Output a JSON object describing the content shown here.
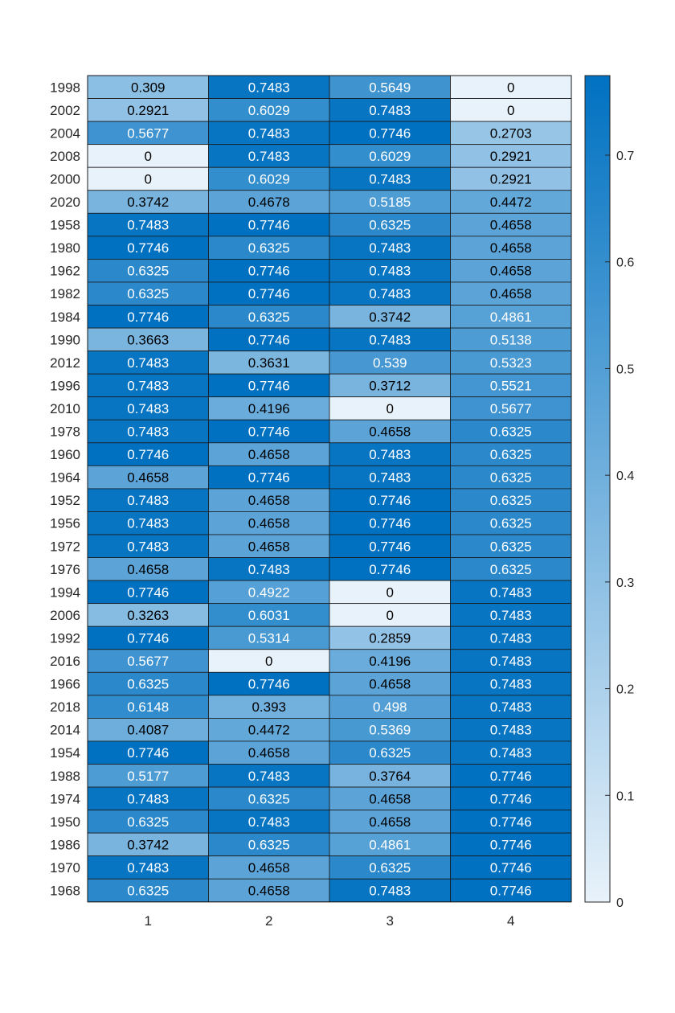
{
  "chart_data": {
    "type": "heatmap",
    "title": "",
    "xlabel": "",
    "ylabel": "",
    "x_categories": [
      "1",
      "2",
      "3",
      "4"
    ],
    "y_categories": [
      "1998",
      "2002",
      "2004",
      "2008",
      "2000",
      "2020",
      "1958",
      "1980",
      "1962",
      "1982",
      "1984",
      "1990",
      "2012",
      "1996",
      "2010",
      "1978",
      "1960",
      "1964",
      "1952",
      "1956",
      "1972",
      "1976",
      "1994",
      "2006",
      "1992",
      "2016",
      "1966",
      "2018",
      "2014",
      "1954",
      "1988",
      "1974",
      "1950",
      "1986",
      "1970",
      "1968"
    ],
    "values": [
      [
        "0.309",
        "0.7483",
        "0.5649",
        "0"
      ],
      [
        "0.2921",
        "0.6029",
        "0.7483",
        "0"
      ],
      [
        "0.5677",
        "0.7483",
        "0.7746",
        "0.2703"
      ],
      [
        "0",
        "0.7483",
        "0.6029",
        "0.2921"
      ],
      [
        "0",
        "0.6029",
        "0.7483",
        "0.2921"
      ],
      [
        "0.3742",
        "0.4678",
        "0.5185",
        "0.4472"
      ],
      [
        "0.7483",
        "0.7746",
        "0.6325",
        "0.4658"
      ],
      [
        "0.7746",
        "0.6325",
        "0.7483",
        "0.4658"
      ],
      [
        "0.6325",
        "0.7746",
        "0.7483",
        "0.4658"
      ],
      [
        "0.6325",
        "0.7746",
        "0.7483",
        "0.4658"
      ],
      [
        "0.7746",
        "0.6325",
        "0.3742",
        "0.4861"
      ],
      [
        "0.3663",
        "0.7746",
        "0.7483",
        "0.5138"
      ],
      [
        "0.7483",
        "0.3631",
        "0.539",
        "0.5323"
      ],
      [
        "0.7483",
        "0.7746",
        "0.3712",
        "0.5521"
      ],
      [
        "0.7483",
        "0.4196",
        "0",
        "0.5677"
      ],
      [
        "0.7483",
        "0.7746",
        "0.4658",
        "0.6325"
      ],
      [
        "0.7746",
        "0.4658",
        "0.7483",
        "0.6325"
      ],
      [
        "0.4658",
        "0.7746",
        "0.7483",
        "0.6325"
      ],
      [
        "0.7483",
        "0.4658",
        "0.7746",
        "0.6325"
      ],
      [
        "0.7483",
        "0.4658",
        "0.7746",
        "0.6325"
      ],
      [
        "0.7483",
        "0.4658",
        "0.7746",
        "0.6325"
      ],
      [
        "0.4658",
        "0.7483",
        "0.7746",
        "0.6325"
      ],
      [
        "0.7746",
        "0.4922",
        "0",
        "0.7483"
      ],
      [
        "0.3263",
        "0.6031",
        "0",
        "0.7483"
      ],
      [
        "0.7746",
        "0.5314",
        "0.2859",
        "0.7483"
      ],
      [
        "0.5677",
        "0",
        "0.4196",
        "0.7483"
      ],
      [
        "0.6325",
        "0.7746",
        "0.4658",
        "0.7483"
      ],
      [
        "0.6148",
        "0.393",
        "0.498",
        "0.7483"
      ],
      [
        "0.4087",
        "0.4472",
        "0.5369",
        "0.7483"
      ],
      [
        "0.7746",
        "0.4658",
        "0.6325",
        "0.7483"
      ],
      [
        "0.5177",
        "0.7483",
        "0.3764",
        "0.7746"
      ],
      [
        "0.7483",
        "0.6325",
        "0.4658",
        "0.7746"
      ],
      [
        "0.6325",
        "0.7483",
        "0.4658",
        "0.7746"
      ],
      [
        "0.3742",
        "0.6325",
        "0.4861",
        "0.7746"
      ],
      [
        "0.7483",
        "0.4658",
        "0.6325",
        "0.7746"
      ],
      [
        "0.6325",
        "0.4658",
        "0.7483",
        "0.7746"
      ]
    ],
    "colorbar": {
      "range": [
        0,
        0.7746
      ],
      "ticks": [
        "0",
        "0.1",
        "0.2",
        "0.3",
        "0.4",
        "0.5",
        "0.6",
        "0.7"
      ],
      "color_low": "#e8f2fa",
      "color_high": "#0071c1"
    },
    "cell_text_colors": {
      "dark": "#000000",
      "light": "#ffffff"
    },
    "grid": true
  }
}
